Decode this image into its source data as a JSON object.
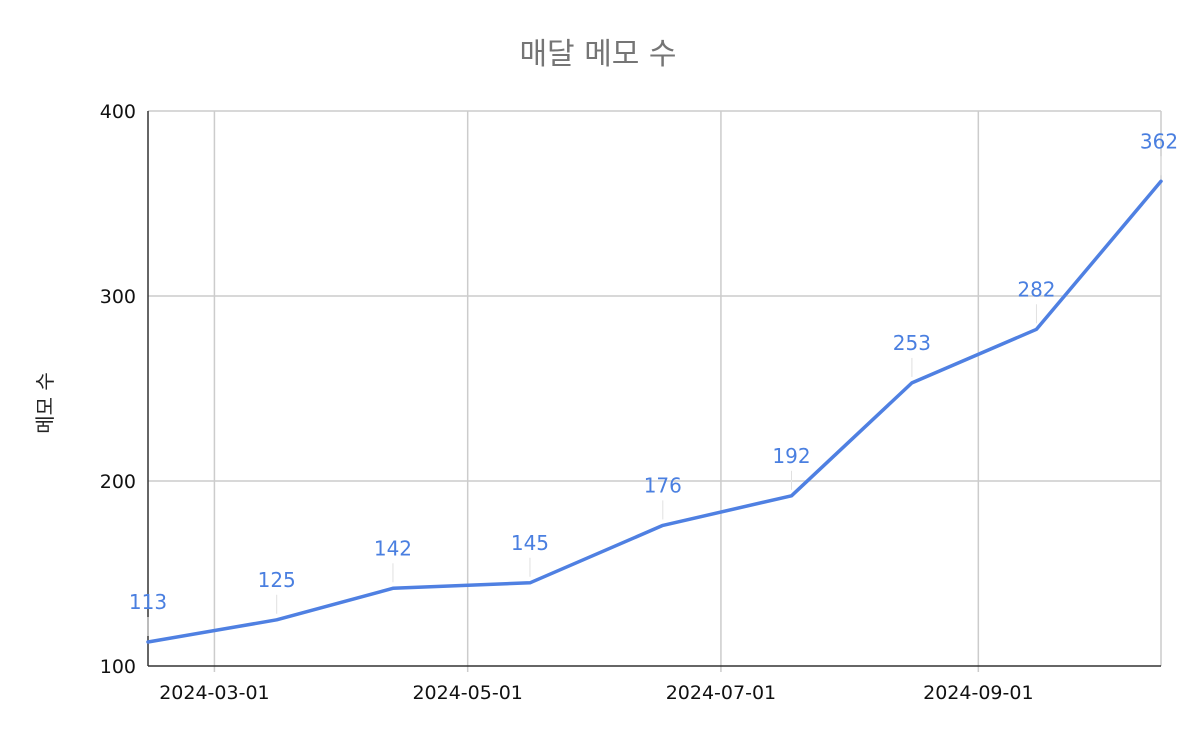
{
  "chart_data": {
    "type": "line",
    "title": "매달 메모 수",
    "xlabel": "",
    "ylabel": "메모 수",
    "x": [
      "2024-02-14",
      "2024-03-16",
      "2024-04-13",
      "2024-05-16",
      "2024-06-17",
      "2024-07-18",
      "2024-08-16",
      "2024-09-15",
      "2024-10-15"
    ],
    "series": [
      {
        "values": [
          113,
          125,
          142,
          145,
          176,
          192,
          253,
          282,
          362
        ]
      }
    ],
    "data_labels": [
      "113",
      "125",
      "142",
      "145",
      "176",
      "192",
      "253",
      "282",
      "362"
    ],
    "xlim": [
      "2024-02-14",
      "2024-10-15"
    ],
    "ylim": [
      100,
      400
    ],
    "yticks": [
      100,
      200,
      300,
      400
    ],
    "ytick_labels": [
      "100",
      "200",
      "300",
      "400"
    ],
    "xticks": [
      "2024-03-01",
      "2024-05-01",
      "2024-07-01",
      "2024-09-01"
    ],
    "xtick_labels": [
      "2024-03-01",
      "2024-05-01",
      "2024-07-01",
      "2024-09-01"
    ],
    "grid": true,
    "colors": {
      "series": "#4f80e2",
      "labels": "#4a7fe0"
    }
  }
}
